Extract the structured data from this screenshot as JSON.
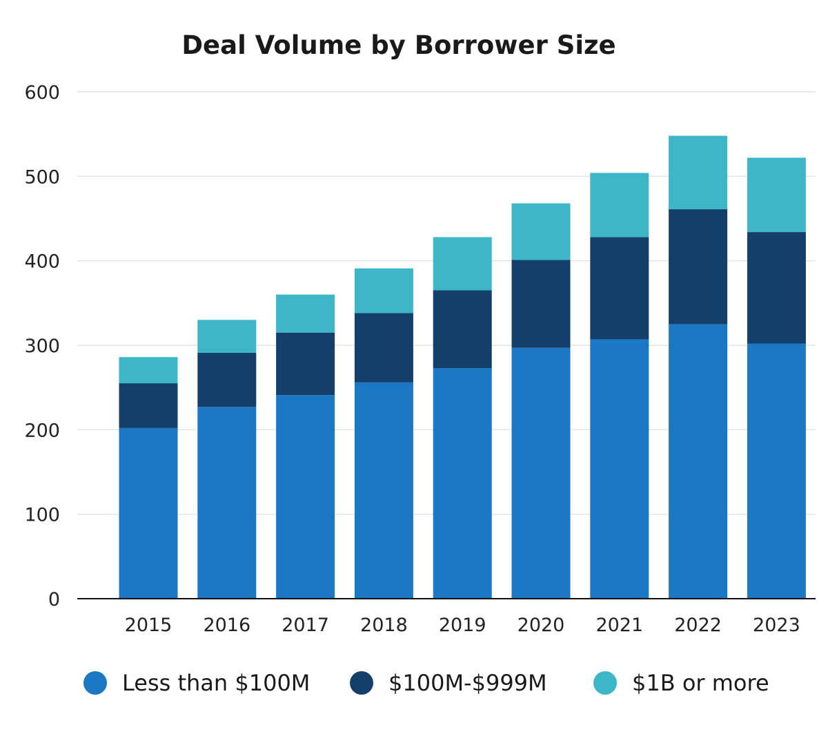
{
  "chart_data": {
    "type": "bar",
    "stacked": true,
    "title": "Deal Volume by Borrower Size",
    "xlabel": "",
    "ylabel": "",
    "ylim": [
      0,
      600
    ],
    "yticks": [
      0,
      100,
      200,
      300,
      400,
      500,
      600
    ],
    "grid": true,
    "legend_position": "bottom",
    "categories": [
      "2015",
      "2016",
      "2017",
      "2018",
      "2019",
      "2020",
      "2021",
      "2022",
      "2023"
    ],
    "series": [
      {
        "name": "Less than $100M",
        "color": "#1b78c4",
        "values": [
          202,
          227,
          241,
          256,
          273,
          297,
          307,
          325,
          302
        ]
      },
      {
        "name": "$100M-$999M",
        "color": "#143f6a",
        "values": [
          53,
          64,
          74,
          82,
          92,
          104,
          121,
          136,
          132
        ]
      },
      {
        "name": "$1B or more",
        "color": "#3db7c7",
        "values": [
          31,
          39,
          45,
          53,
          63,
          67,
          76,
          87,
          88
        ]
      }
    ]
  }
}
